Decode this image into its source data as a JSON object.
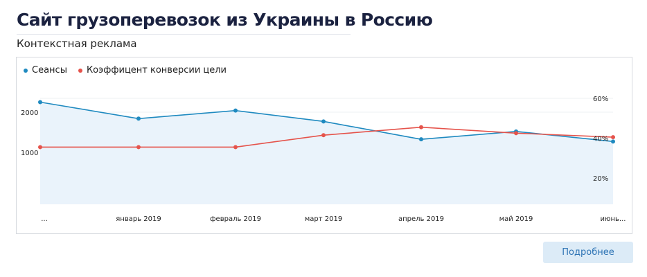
{
  "header": {
    "title": "Сайт грузоперевозок из Украины в Россию",
    "subtitle": "Контекстная реклама"
  },
  "legend": {
    "sessions": "Сеансы",
    "conversion": "Коэффицент конверсии цели"
  },
  "colors": {
    "sessions": "#1f8ac0",
    "conversion": "#e5534b",
    "area": "#eaf3fb",
    "button_bg": "#dcebf7",
    "button_text": "#2e74b5"
  },
  "chart_data": {
    "type": "line",
    "categories": [
      "...",
      "январь 2019",
      "февраль 2019",
      "март 2019",
      "апрель 2019",
      "май 2019",
      "июнь..."
    ],
    "series": [
      {
        "name": "Сеансы",
        "axis": "left",
        "values": [
          2250,
          1840,
          2040,
          1770,
          1325,
          1520,
          1270
        ]
      },
      {
        "name": "Коэффицент конверсии цели",
        "axis": "right",
        "values": [
          0.355,
          0.355,
          0.355,
          0.415,
          0.455,
          0.425,
          0.405
        ]
      }
    ],
    "y_left": {
      "ticks": [
        1000,
        2000
      ],
      "tick_labels": [
        "1000",
        "2000"
      ]
    },
    "y_right": {
      "ticks": [
        0.2,
        0.4,
        0.6
      ],
      "tick_labels": [
        "20%",
        "40%",
        "60%"
      ]
    },
    "grid": true,
    "legend_position": "top-left"
  },
  "actions": {
    "details_label": "Подробнее"
  }
}
